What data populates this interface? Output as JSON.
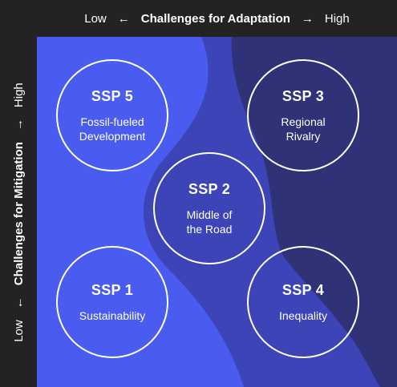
{
  "adaptation_axis": {
    "low": "Low",
    "low_arrow": "←",
    "title": "Challenges for Adaptation",
    "high_arrow": "→",
    "high": "High"
  },
  "mitigation_axis": {
    "low": "Low",
    "low_arrow": "←",
    "title": "Challenges for Mitigation",
    "high_arrow": "→",
    "high": "High"
  },
  "colors": {
    "background": "#232323",
    "low_region": "#4a5cf0",
    "middle_region": "#3c44b8",
    "high_region": "#2f3276",
    "circle_outline": "#ffffff"
  },
  "scenarios": [
    {
      "code": "SSP 5",
      "name_lines": [
        "Fossil-fueled",
        "Development"
      ],
      "adaptation": "Low",
      "mitigation": "High"
    },
    {
      "code": "SSP 3",
      "name_lines": [
        "Regional",
        "Rivalry"
      ],
      "adaptation": "High",
      "mitigation": "High"
    },
    {
      "code": "SSP 2",
      "name_lines": [
        "Middle of",
        "the Road"
      ],
      "adaptation": "Medium",
      "mitigation": "Medium"
    },
    {
      "code": "SSP 1",
      "name_lines": [
        "Sustainability"
      ],
      "adaptation": "Low",
      "mitigation": "Low"
    },
    {
      "code": "SSP 4",
      "name_lines": [
        "Inequality"
      ],
      "adaptation": "High",
      "mitigation": "Low"
    }
  ]
}
